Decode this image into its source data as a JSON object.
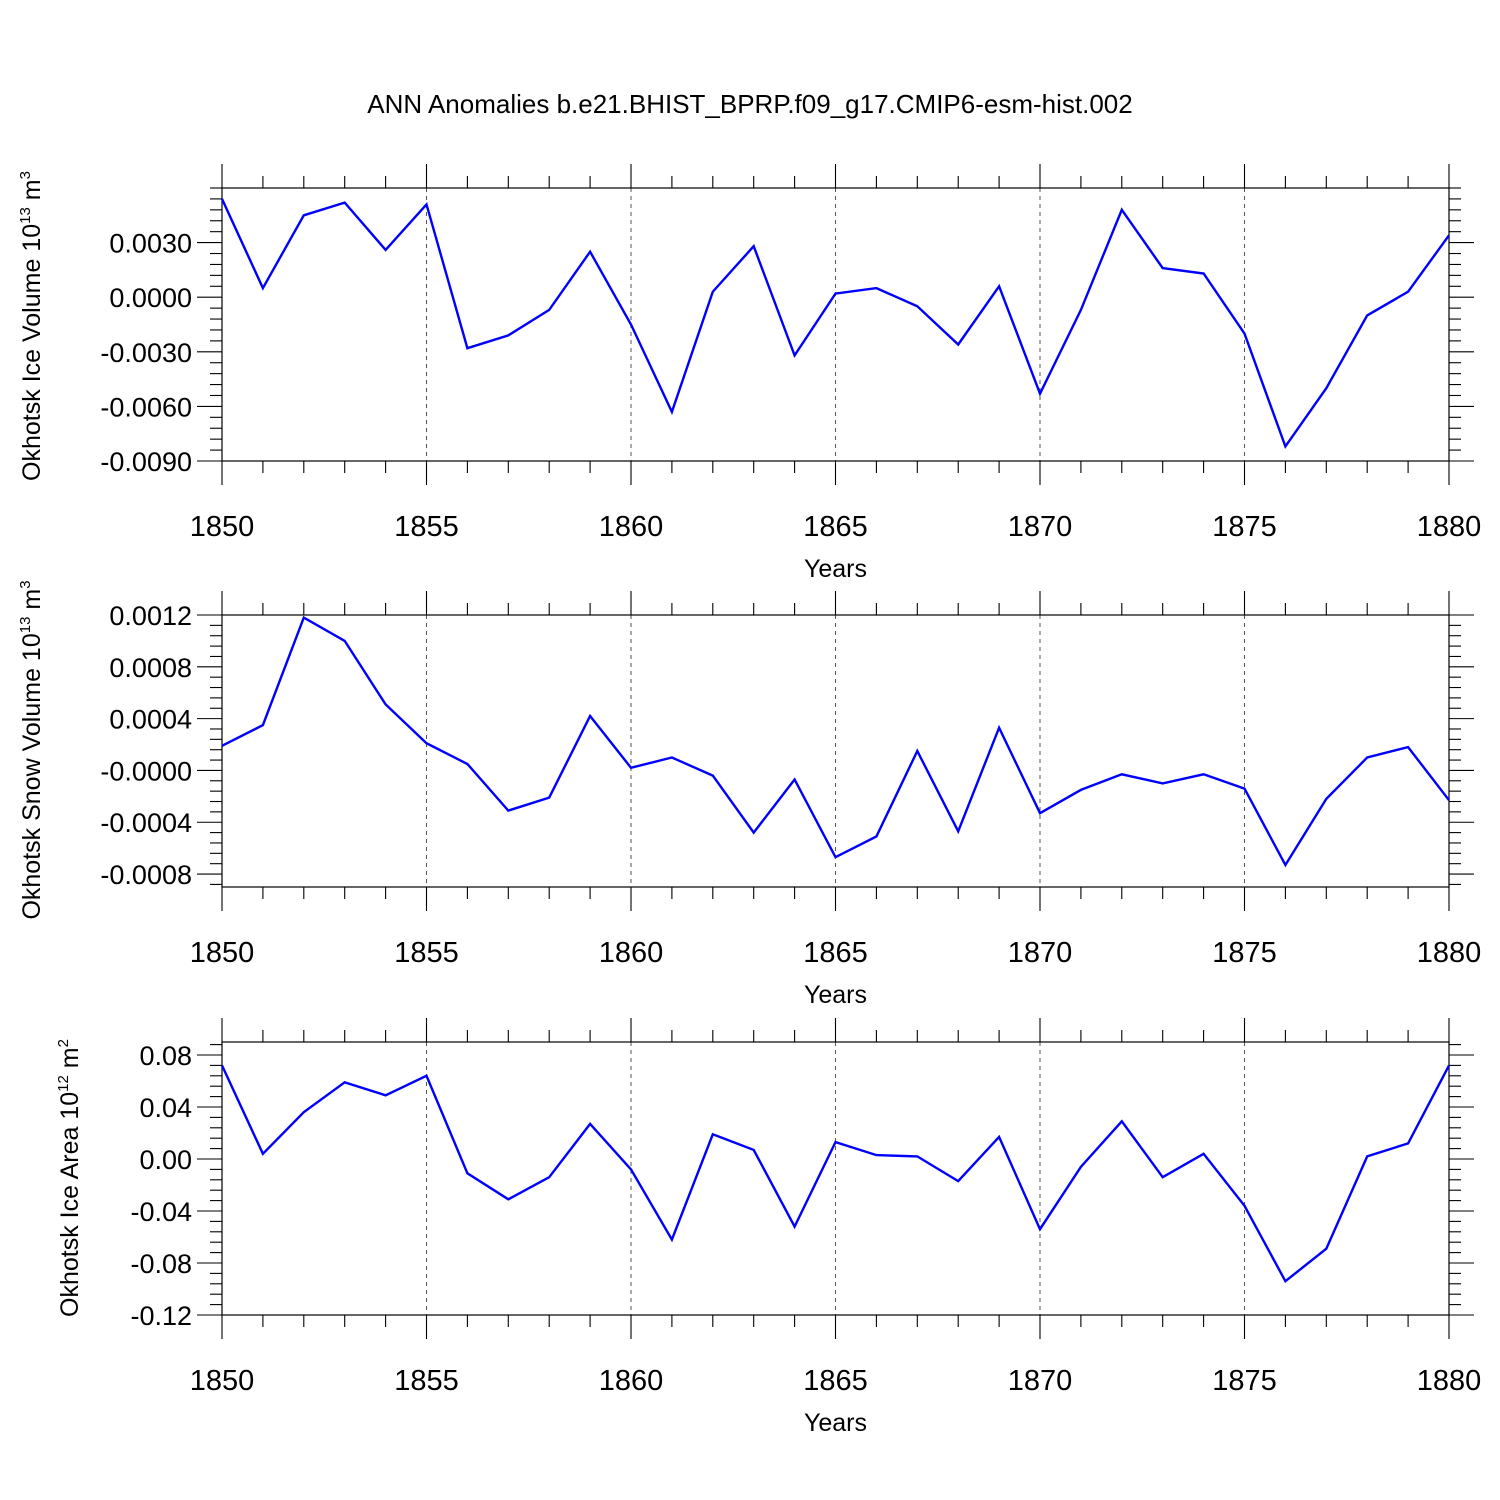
{
  "figure": {
    "title": "ANN Anomalies b.e21.BHIST_BPRP.f09_g17.CMIP6-esm-hist.002"
  },
  "chart_data": [
    {
      "type": "line",
      "title": "",
      "xlabel": "Years",
      "ylabel": "Okhotsk Ice Volume 10",
      "ylabel_exp": "13",
      "ylabel_unit": " m",
      "ylabel_unit_exp": "3",
      "xlim": [
        1850,
        1880
      ],
      "ylim": [
        -0.009,
        0.006
      ],
      "x_ticks": [
        1850,
        1855,
        1860,
        1865,
        1870,
        1875,
        1880
      ],
      "x_tick_labels": [
        "1850",
        "1855",
        "1860",
        "1865",
        "1870",
        "1875",
        "1880"
      ],
      "y_ticks": [
        0.003,
        0.0,
        -0.003,
        -0.006,
        -0.009
      ],
      "y_tick_labels": [
        "0.0030",
        "0.0000",
        "-0.0030",
        "-0.0060",
        "-0.0090"
      ],
      "grid": "dashed vertical at major x ticks",
      "line_color": "#0000ff",
      "series": [
        {
          "name": "Okhotsk Ice Volume",
          "x": [
            1850,
            1851,
            1852,
            1853,
            1854,
            1855,
            1856,
            1857,
            1858,
            1859,
            1860,
            1861,
            1862,
            1863,
            1864,
            1865,
            1866,
            1867,
            1868,
            1869,
            1870,
            1871,
            1872,
            1873,
            1874,
            1875,
            1876,
            1877,
            1878,
            1879,
            1880
          ],
          "values": [
            0.0054,
            0.0005,
            0.0045,
            0.0052,
            0.0026,
            0.0051,
            -0.0028,
            -0.0021,
            -0.0007,
            0.0025,
            -0.0015,
            -0.0063,
            0.0003,
            0.0028,
            -0.0032,
            0.0002,
            0.0005,
            -0.0005,
            -0.0026,
            0.0006,
            -0.0053,
            -0.0007,
            0.0048,
            0.0016,
            0.0013,
            -0.002,
            -0.0082,
            -0.005,
            -0.001,
            0.0003,
            0.0034
          ]
        }
      ]
    },
    {
      "type": "line",
      "title": "",
      "xlabel": "Years",
      "ylabel": "Okhotsk Snow Volume 10",
      "ylabel_exp": "13",
      "ylabel_unit": " m",
      "ylabel_unit_exp": "3",
      "xlim": [
        1850,
        1880
      ],
      "ylim": [
        -0.0009,
        0.0012
      ],
      "x_ticks": [
        1850,
        1855,
        1860,
        1865,
        1870,
        1875,
        1880
      ],
      "x_tick_labels": [
        "1850",
        "1855",
        "1860",
        "1865",
        "1870",
        "1875",
        "1880"
      ],
      "y_ticks": [
        0.0012,
        0.0008,
        0.0004,
        0.0,
        -0.0004,
        -0.0008
      ],
      "y_tick_labels": [
        "0.0012",
        "0.0008",
        "0.0004",
        "-0.0000",
        "-0.0004",
        "-0.0008"
      ],
      "grid": "dashed vertical at major x ticks",
      "line_color": "#0000ff",
      "series": [
        {
          "name": "Okhotsk Snow Volume",
          "x": [
            1850,
            1851,
            1852,
            1853,
            1854,
            1855,
            1856,
            1857,
            1858,
            1859,
            1860,
            1861,
            1862,
            1863,
            1864,
            1865,
            1866,
            1867,
            1868,
            1869,
            1870,
            1871,
            1872,
            1873,
            1874,
            1875,
            1876,
            1877,
            1878,
            1879,
            1880
          ],
          "values": [
            0.00019,
            0.00035,
            0.00118,
            0.001,
            0.00051,
            0.00021,
            5e-05,
            -0.00031,
            -0.00021,
            0.00042,
            2e-05,
            0.0001,
            -4e-05,
            -0.00048,
            -7e-05,
            -0.00067,
            -0.00051,
            0.00015,
            -0.00047,
            0.00033,
            -0.00033,
            -0.00015,
            -3e-05,
            -0.0001,
            -3e-05,
            -0.00014,
            -0.00073,
            -0.00022,
            0.0001,
            0.00018,
            -0.00023
          ]
        }
      ]
    },
    {
      "type": "line",
      "title": "",
      "xlabel": "Years",
      "ylabel": "Okhotsk Ice Area 10",
      "ylabel_exp": "12",
      "ylabel_unit": " m",
      "ylabel_unit_exp": "2",
      "xlim": [
        1850,
        1880
      ],
      "ylim": [
        -0.12,
        0.09
      ],
      "x_ticks": [
        1850,
        1855,
        1860,
        1865,
        1870,
        1875,
        1880
      ],
      "x_tick_labels": [
        "1850",
        "1855",
        "1860",
        "1865",
        "1870",
        "1875",
        "1880"
      ],
      "y_ticks": [
        0.08,
        0.04,
        0.0,
        -0.04,
        -0.08,
        -0.12
      ],
      "y_tick_labels": [
        "0.08",
        "0.04",
        "0.00",
        "-0.04",
        "-0.08",
        "-0.12"
      ],
      "grid": "dashed vertical at major x ticks",
      "line_color": "#0000ff",
      "series": [
        {
          "name": "Okhotsk Ice Area",
          "x": [
            1850,
            1851,
            1852,
            1853,
            1854,
            1855,
            1856,
            1857,
            1858,
            1859,
            1860,
            1861,
            1862,
            1863,
            1864,
            1865,
            1866,
            1867,
            1868,
            1869,
            1870,
            1871,
            1872,
            1873,
            1874,
            1875,
            1876,
            1877,
            1878,
            1879,
            1880
          ],
          "values": [
            0.072,
            0.004,
            0.036,
            0.059,
            0.049,
            0.064,
            -0.011,
            -0.031,
            -0.014,
            0.027,
            -0.008,
            -0.062,
            0.019,
            0.007,
            -0.052,
            0.013,
            0.003,
            0.002,
            -0.017,
            0.017,
            -0.054,
            -0.006,
            0.029,
            -0.014,
            0.004,
            -0.036,
            -0.094,
            -0.069,
            0.002,
            0.012,
            0.072
          ]
        }
      ]
    }
  ]
}
